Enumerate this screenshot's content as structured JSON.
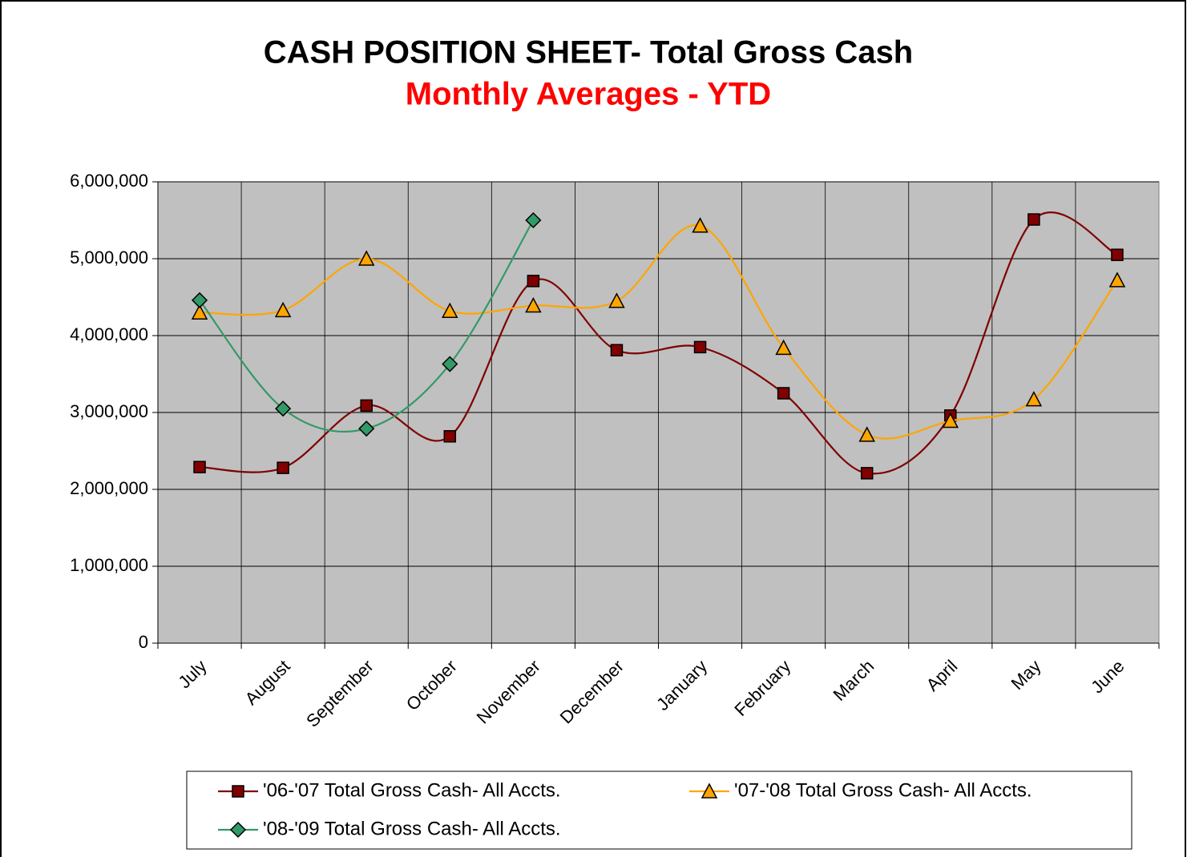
{
  "chart_data": {
    "type": "line",
    "title": "CASH POSITION SHEET- Total Gross Cash",
    "subtitle": "Monthly Averages - YTD",
    "categories": [
      "July",
      "August",
      "September",
      "October",
      "November",
      "December",
      "January",
      "February",
      "March",
      "April",
      "May",
      "June"
    ],
    "series": [
      {
        "name": "'06-'07 Total Gross Cash- All Accts.",
        "color": "#800000",
        "marker": "square",
        "values": [
          2290000,
          2280000,
          3090000,
          2690000,
          4710000,
          3810000,
          3850000,
          3250000,
          2210000,
          2960000,
          5510000,
          5050000
        ]
      },
      {
        "name": "'07-'08 Total Gross Cash- All Accts.",
        "color": "#ffa500",
        "marker": "triangle",
        "values": [
          4300000,
          4330000,
          5000000,
          4320000,
          4390000,
          4450000,
          5430000,
          3840000,
          2710000,
          2890000,
          3170000,
          4720000
        ]
      },
      {
        "name": "'08-'09 Total Gross Cash- All Accts.",
        "color": "#339966",
        "marker": "diamond",
        "values": [
          4460000,
          3050000,
          2790000,
          3630000,
          5500000,
          null,
          null,
          null,
          null,
          null,
          null,
          null
        ]
      }
    ],
    "ylim": [
      0,
      6000000
    ],
    "yticks": [
      0,
      {
        "value": 1000000,
        "label": "1,000,000"
      },
      {
        "value": 2000000,
        "label": "2,000,000"
      },
      {
        "value": 3000000,
        "label": "3,000,000"
      },
      {
        "value": 4000000,
        "label": "4,000,000"
      },
      {
        "value": 5000000,
        "label": "5,000,000"
      },
      {
        "value": 6000000,
        "label": "6,000,000"
      }
    ],
    "grid": true,
    "smooth": true,
    "legend": "bottom"
  }
}
